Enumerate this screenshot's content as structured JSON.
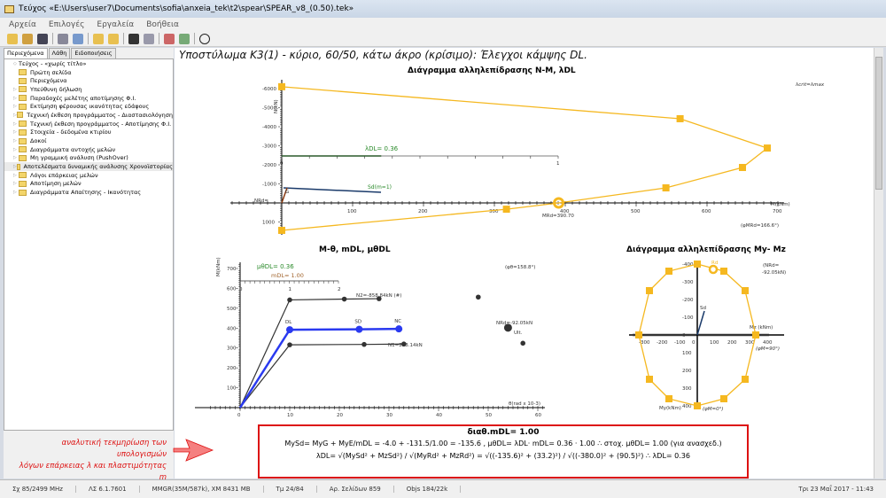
{
  "window": {
    "title": "Τεύχος «E:\\Users\\user7\\Documents\\sofia\\anxeia_tek\\t2\\spear\\SPEAR_v8_(0.50).tek»"
  },
  "menu": [
    "Αρχεία",
    "Επιλογές",
    "Εργαλεία",
    "Βοήθεια"
  ],
  "sidebar": {
    "tabs": [
      "Περιεχόμενα",
      "Λάθη",
      "Ειδοποιήσεις"
    ],
    "items": [
      {
        "label": "Τεύχος - «χωρίς τίτλο»",
        "root": true
      },
      {
        "label": "Πρώτη σελίδα"
      },
      {
        "label": "Περιεχόμενα"
      },
      {
        "label": "Υπεύθυνη δήλωση"
      },
      {
        "label": "Παραδοχές μελέτης αποτίμησης Φ.Ι."
      },
      {
        "label": "Εκτίμηση φέρουσας ικανότητας εδάφους"
      },
      {
        "label": "Τεχνική έκθεση προγράμματος - Διαστασιολόγηση"
      },
      {
        "label": "Τεχνική έκθεση προγράμματος - Αποτίμησης Φ.Ι."
      },
      {
        "label": "Στοιχεία - δεδομένα κτιρίου"
      },
      {
        "label": "Δοκοί"
      },
      {
        "label": "Διαγράμματα αντοχής μελών"
      },
      {
        "label": "Μη γραμμική ανάλυση (PushOver)"
      },
      {
        "label": "Αποτελέσματα δυναμικής ανάλυσης Χρονοϊστορίας",
        "selected": true
      },
      {
        "label": "Λόγοι επάρκειας μελών"
      },
      {
        "label": "Αποτίμηση μελών"
      },
      {
        "label": "Διαγράμματα Απαίτησης - Ικανότητας"
      }
    ]
  },
  "page": {
    "title": "Υποστύλωμα K3(1) - κύριο, 60/50, κάτω άκρο (κρίσιμο): Έλεγχοι κάμψης DL."
  },
  "note": {
    "line1": "αναλυτική τεκμηρίωση των υπολογισμών",
    "line2": "λόγων επάρκειας λ και πλαστιμότητας m"
  },
  "formula": {
    "line1": "διαθ.mDL= 1.00",
    "line2": "MySd= MyG + MyE/mDL = -4.0 + -131.5/1.00 = -135.6 ,  μθDL= λDL· mDL= 0.36 · 1.00 ∴  στοχ. μθDL= 1.00 (για ανασχεδ.)",
    "line3": "λDL= √(MySd² + MzSd²) / √(MyRd² + MzRd²) = √((-135.6)² + (33.2)²) / √((-380.0)² + (90.5)²) ∴ λDL= 0.36"
  },
  "status": [
    "Σχ 85/2499 MHz",
    "ΛΣ 6.1.7601",
    "MMGR(35M/587k), XM 8431 MB",
    "Τμ 24/84",
    "Αρ. Σελίδων 859",
    "Objs 184/22k",
    "Τρι 23 Μαΐ 2017 - 11:43"
  ],
  "colors": {
    "envelope": "#f5b820",
    "blue": "#2a3af0",
    "sd": "#1a3a6a",
    "green": "#2a8a2a",
    "red": "#dd1111"
  },
  "chart_data": [
    {
      "type": "line",
      "title": "Διάγραμμα αλληλεπίδρασης N-M, λDL",
      "xlabel": "M(kNm)",
      "ylabel": "N(kN)",
      "xlim": [
        -100,
        700
      ],
      "ylim": [
        -6000,
        1000
      ],
      "x_ticks": [
        100,
        200,
        300,
        400,
        500,
        600,
        700
      ],
      "y_ticks": [
        -6000,
        -5000,
        -4000,
        -3000,
        -2000,
        -1000,
        1000
      ],
      "series": [
        {
          "x": [
            0,
            562,
            685,
            650,
            542,
            390.7,
            317,
            0
          ],
          "y": [
            -6100,
            -4420,
            -2880,
            -1860,
            -790,
            0,
            330,
            1440
          ]
        }
      ],
      "annotations": {
        "lcrit": "λcrit=λmax",
        "lambda_label": "λDL= 0.36",
        "lambda": 0.36,
        "lambda_ticks": [
          "0",
          "1"
        ],
        "sd": "Sd(m=1)",
        "sd_point": [
          140,
          -600
        ],
        "g": "G",
        "nrd": "NRd=",
        "mrd": "MRd=390.70",
        "phi": "(φMRd=166.6°)"
      }
    },
    {
      "type": "line",
      "title": "M-θ, mDL, μθDL",
      "xlabel": "θ(rad x 10-3)",
      "ylabel": "M(kNm)",
      "xlim": [
        -6,
        60
      ],
      "ylim": [
        0,
        700
      ],
      "x_ticks": [
        0,
        10,
        20,
        30,
        40,
        50,
        60
      ],
      "y_ticks": [
        100,
        200,
        300,
        400,
        500,
        600,
        700
      ],
      "series": [
        {
          "name": "N2=-858.84kN (#)",
          "x": [
            0,
            10,
            21,
            28
          ],
          "y": [
            0,
            542,
            546,
            548
          ]
        },
        {
          "name": "N1=293.14kN",
          "x": [
            0,
            10,
            25,
            33
          ],
          "y": [
            0,
            316,
            318,
            320
          ]
        },
        {
          "x": [
            0,
            10,
            24,
            32
          ],
          "y": [
            0,
            392,
            394,
            396
          ],
          "labels": [
            "",
            "DL",
            "SD",
            "NC"
          ]
        }
      ],
      "extra_points": [
        [
          48,
          556
        ],
        [
          54,
          402
        ],
        [
          57,
          324
        ]
      ],
      "annotations": {
        "mu": "μθDL= 0.36",
        "mdl": "mDL= 1.00",
        "m_ticks": [
          "0",
          "1",
          "2"
        ],
        "phi": "(φθ=158.8°)",
        "nrd": "NRd=-92.05kN",
        "ult": "Ult."
      }
    },
    {
      "type": "line",
      "title": "Διάγραμμα αλληλεπίδρασης My- Mz",
      "xlabel": "Mz (kNm)",
      "ylabel": "My(kNm)",
      "xlim": [
        -300,
        400
      ],
      "ylim": [
        -400,
        400
      ],
      "x_ticks": [
        -300,
        -200,
        -100,
        0,
        100,
        200,
        300,
        400
      ],
      "y_ticks": [
        -400,
        -300,
        -200,
        -100,
        0,
        100,
        200,
        300,
        400
      ],
      "series": [
        {
          "x": [
            0,
            150,
            270,
            330,
            270,
            150,
            0,
            -160,
            -270,
            -330,
            -270,
            -160,
            0
          ],
          "y": [
            -400,
            -360,
            -250,
            0,
            250,
            360,
            400,
            360,
            250,
            0,
            -250,
            -360,
            -400
          ]
        }
      ],
      "annotations": {
        "rd": "Rd",
        "rd_point": [
          90,
          -370
        ],
        "sd": "Sd",
        "sd_point": [
          40,
          -135
        ],
        "nrd": "(NRd=",
        "nrd2": "-92.05kN)",
        "phi90": "(φM=90°)",
        "phi0": "(φM=0°)"
      }
    }
  ]
}
